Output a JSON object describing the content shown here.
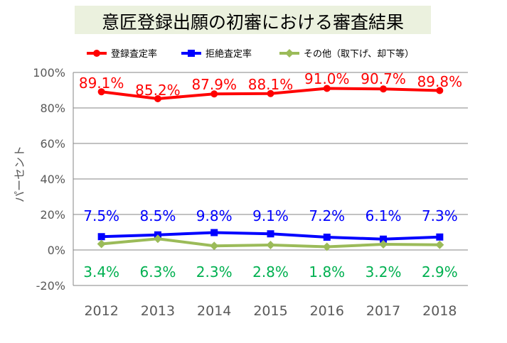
{
  "chart_data": {
    "type": "line",
    "title": "意匠登録出願の初審における審査結果",
    "ylabel": "パーセント",
    "xlabel": "",
    "x": [
      "2012",
      "2013",
      "2014",
      "2015",
      "2016",
      "2017",
      "2018"
    ],
    "ylim": [
      -20,
      100
    ],
    "yticks": [
      -20,
      0,
      20,
      40,
      60,
      80,
      100
    ],
    "ytick_labels": [
      "-20%",
      "0%",
      "20%",
      "40%",
      "60%",
      "80%",
      "100%"
    ],
    "grid": true,
    "legend_position": "top",
    "series": [
      {
        "name": "登録査定率",
        "values": [
          89.1,
          85.2,
          87.9,
          88.1,
          91.0,
          90.7,
          89.8
        ],
        "labels": [
          "89.1%",
          "85.2%",
          "87.9%",
          "88.1%",
          "91.0%",
          "90.7%",
          "89.8%"
        ],
        "color": "#ff0000",
        "label_color": "#ff0000",
        "marker": "circle"
      },
      {
        "name": "拒絶査定率",
        "values": [
          7.5,
          8.5,
          9.8,
          9.1,
          7.2,
          6.1,
          7.3
        ],
        "labels": [
          "7.5%",
          "8.5%",
          "9.8%",
          "9.1%",
          "7.2%",
          "6.1%",
          "7.3%"
        ],
        "color": "#0000ff",
        "label_color": "#0000ff",
        "marker": "square"
      },
      {
        "name": "その他（取下げ、却下等）",
        "values": [
          3.4,
          6.3,
          2.3,
          2.8,
          1.8,
          3.2,
          2.9
        ],
        "labels": [
          "3.4%",
          "6.3%",
          "2.3%",
          "2.8%",
          "1.8%",
          "3.2%",
          "2.9%"
        ],
        "color": "#9bbb59",
        "label_color": "#00b050",
        "marker": "diamond"
      }
    ]
  }
}
